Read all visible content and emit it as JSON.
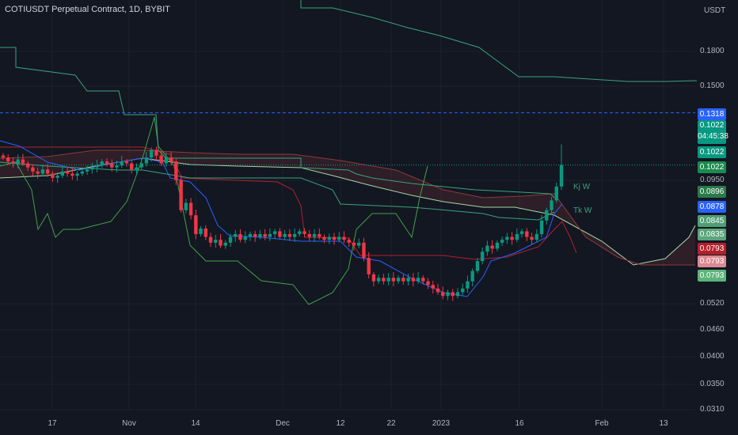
{
  "title": "COTIUSDT Perpetual Contract, 1D, BYBIT",
  "currency": "USDT",
  "y_axis_labels": [
    "0.1800",
    "0.1500",
    "0.0950",
    "0.0520",
    "0.0460",
    "0.0400",
    "0.0350",
    "0.0310"
  ],
  "x_axis_labels": [
    "17",
    "Nov",
    "14",
    "Dec",
    "12",
    "22",
    "2023",
    "16",
    "Feb",
    "13"
  ],
  "price_tags": [
    {
      "text": "0.1318",
      "color": "#2962ff"
    },
    {
      "text": "0.1022\n04:45:38",
      "color": "#089981"
    },
    {
      "text": "0.1022",
      "color": "#089981"
    },
    {
      "text": "0.1022",
      "color": "#1b8b4e"
    },
    {
      "text": "0.0896",
      "color": "#2a7a4a"
    },
    {
      "text": "0.0878",
      "color": "#2962ff"
    },
    {
      "text": "0.0845",
      "color": "#4f9e74"
    },
    {
      "text": "0.0835",
      "color": "#5ba57c"
    },
    {
      "text": "0.0793",
      "color": "#b2202c"
    },
    {
      "text": "0.0793",
      "color": "#d98a92"
    },
    {
      "text": "0.0793",
      "color": "#5bb47a"
    }
  ],
  "indicator_labels": {
    "kijun_weekly": "Kj W",
    "tenkan_weekly": "Tk W"
  },
  "colors": {
    "background": "#131722",
    "up": "#089981",
    "down": "#f23645",
    "tenkan": "#2962ff",
    "kijun": "#b2202c",
    "chikou": "#43a047",
    "span_a": "#a5d6a7",
    "span_b": "#8d3a3a",
    "weekly": "#3aa37c",
    "dashed": "#2962ff"
  },
  "chart_data": {
    "type": "candlestick",
    "symbol": "COTIUSDT",
    "interval": "1D",
    "exchange": "BYBIT",
    "y_scale": "log",
    "ylim": [
      0.031,
      0.22
    ],
    "horizontal_lines": [
      {
        "value": 0.1318,
        "style": "dashed"
      },
      {
        "value": 0.1022,
        "style": "dotted"
      }
    ],
    "closes": [
      0.106,
      0.104,
      0.103,
      0.105,
      0.103,
      0.101,
      0.099,
      0.098,
      0.1,
      0.098,
      0.096,
      0.097,
      0.099,
      0.098,
      0.097,
      0.098,
      0.099,
      0.1,
      0.101,
      0.102,
      0.104,
      0.103,
      0.101,
      0.102,
      0.104,
      0.103,
      0.1,
      0.101,
      0.103,
      0.106,
      0.11,
      0.107,
      0.103,
      0.106,
      0.104,
      0.095,
      0.082,
      0.085,
      0.08,
      0.073,
      0.075,
      0.072,
      0.07,
      0.071,
      0.069,
      0.07,
      0.072,
      0.073,
      0.071,
      0.072,
      0.073,
      0.072,
      0.073,
      0.072,
      0.073,
      0.074,
      0.072,
      0.073,
      0.072,
      0.073,
      0.074,
      0.073,
      0.072,
      0.073,
      0.072,
      0.071,
      0.072,
      0.071,
      0.072,
      0.071,
      0.07,
      0.069,
      0.07,
      0.065,
      0.06,
      0.058,
      0.059,
      0.058,
      0.059,
      0.058,
      0.059,
      0.058,
      0.059,
      0.058,
      0.059,
      0.058,
      0.057,
      0.056,
      0.055,
      0.054,
      0.055,
      0.054,
      0.055,
      0.056,
      0.058,
      0.061,
      0.064,
      0.067,
      0.069,
      0.068,
      0.07,
      0.071,
      0.072,
      0.071,
      0.073,
      0.074,
      0.072,
      0.071,
      0.073,
      0.078,
      0.082,
      0.086,
      0.092,
      0.1022
    ]
  }
}
